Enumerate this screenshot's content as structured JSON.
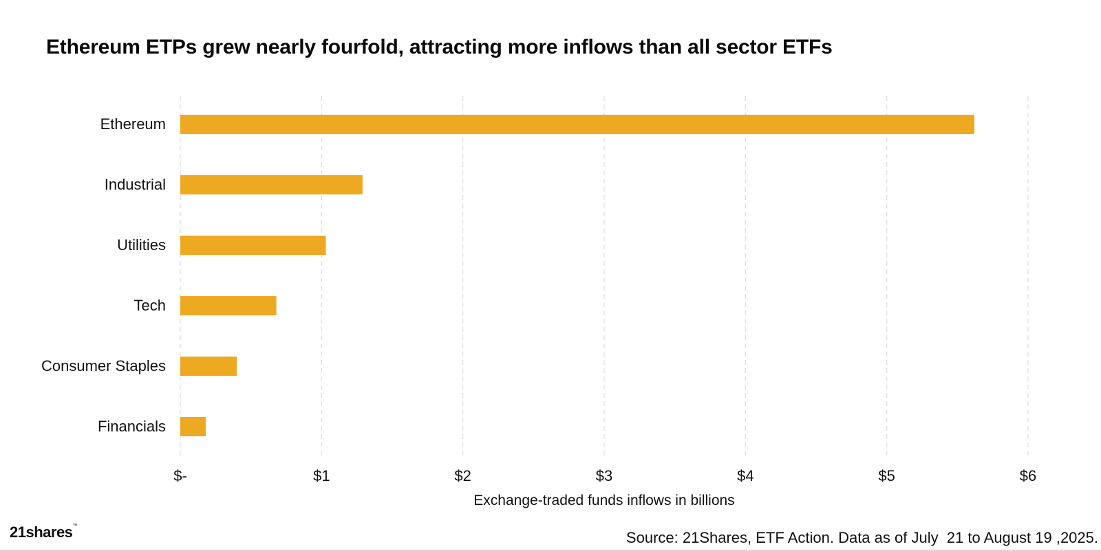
{
  "chart_data": {
    "type": "bar",
    "orientation": "horizontal",
    "title": "Ethereum ETPs grew nearly fourfold, attracting more inflows than all sector ETFs",
    "xlabel": "Exchange-traded funds inflows in billions",
    "ylabel": "",
    "categories": [
      "Ethereum",
      "Industrial",
      "Utilities",
      "Tech",
      "Consumer Staples",
      "Financials"
    ],
    "values": [
      5.62,
      1.29,
      1.03,
      0.68,
      0.4,
      0.18
    ],
    "xlim": [
      0,
      6
    ],
    "ticks": [
      0,
      1,
      2,
      3,
      4,
      5,
      6
    ],
    "tick_labels": [
      "$-",
      "$1",
      "$2",
      "$3",
      "$4",
      "$5",
      "$6"
    ],
    "grid": "vertical dashed",
    "bar_color": "#EEA923",
    "grid_color": "#dddddd"
  },
  "footer": {
    "logo_text": "21shares",
    "logo_mark": "™",
    "source": "Source: 21Shares, ETF Action. Data as of July  21 to August 19 ,2025."
  }
}
